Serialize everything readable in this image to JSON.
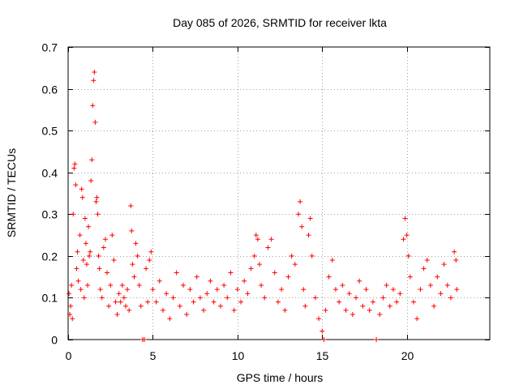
{
  "chart_data": {
    "type": "scatter",
    "title": "Day 085 of 2026, SRMTID for receiver lkta",
    "xlabel": "GPS time / hours",
    "ylabel": "SRMTID / TECUs",
    "xlim": [
      0,
      24.9
    ],
    "ylim": [
      0,
      0.7
    ],
    "x_ticks": [
      0,
      5,
      10,
      15,
      20
    ],
    "x_tick_labels": [
      "0",
      "5",
      "10",
      "15",
      "20"
    ],
    "y_ticks": [
      0,
      0.1,
      0.2,
      0.3,
      0.4,
      0.5,
      0.6,
      0.7
    ],
    "y_tick_labels": [
      "0",
      "0.1",
      "0.2",
      "0.3",
      "0.4",
      "0.5",
      "0.6",
      "0.7"
    ],
    "grid": true,
    "marker": "plus",
    "color": "#ff0000",
    "series": [
      {
        "name": "SRMTID",
        "points": [
          [
            0.05,
            0.11
          ],
          [
            0.1,
            0.06
          ],
          [
            0.15,
            0.08
          ],
          [
            0.2,
            0.13
          ],
          [
            0.25,
            0.05
          ],
          [
            0.3,
            0.3
          ],
          [
            0.35,
            0.41
          ],
          [
            0.4,
            0.42
          ],
          [
            0.45,
            0.37
          ],
          [
            0.5,
            0.17
          ],
          [
            0.55,
            0.21
          ],
          [
            0.6,
            0.14
          ],
          [
            0.7,
            0.25
          ],
          [
            0.75,
            0.12
          ],
          [
            0.8,
            0.36
          ],
          [
            0.85,
            0.34
          ],
          [
            0.9,
            0.19
          ],
          [
            0.95,
            0.1
          ],
          [
            1.0,
            0.29
          ],
          [
            1.05,
            0.23
          ],
          [
            1.1,
            0.18
          ],
          [
            1.15,
            0.13
          ],
          [
            1.2,
            0.27
          ],
          [
            1.25,
            0.2
          ],
          [
            1.3,
            0.21
          ],
          [
            1.35,
            0.38
          ],
          [
            1.4,
            0.43
          ],
          [
            1.45,
            0.56
          ],
          [
            1.5,
            0.62
          ],
          [
            1.55,
            0.64
          ],
          [
            1.6,
            0.52
          ],
          [
            1.65,
            0.33
          ],
          [
            1.7,
            0.34
          ],
          [
            1.75,
            0.3
          ],
          [
            1.8,
            0.2
          ],
          [
            1.85,
            0.17
          ],
          [
            1.9,
            0.12
          ],
          [
            2.0,
            0.1
          ],
          [
            2.1,
            0.22
          ],
          [
            2.2,
            0.24
          ],
          [
            2.3,
            0.16
          ],
          [
            2.4,
            0.08
          ],
          [
            2.5,
            0.13
          ],
          [
            2.6,
            0.25
          ],
          [
            2.7,
            0.19
          ],
          [
            2.8,
            0.09
          ],
          [
            2.9,
            0.06
          ],
          [
            3.0,
            0.11
          ],
          [
            3.1,
            0.09
          ],
          [
            3.2,
            0.13
          ],
          [
            3.3,
            0.1
          ],
          [
            3.4,
            0.08
          ],
          [
            3.5,
            0.12
          ],
          [
            3.6,
            0.07
          ],
          [
            3.7,
            0.32
          ],
          [
            3.75,
            0.26
          ],
          [
            3.8,
            0.18
          ],
          [
            3.9,
            0.15
          ],
          [
            4.0,
            0.23
          ],
          [
            4.1,
            0.2
          ],
          [
            4.2,
            0.13
          ],
          [
            4.3,
            0.08
          ],
          [
            4.4,
            0.0
          ],
          [
            4.5,
            0.0
          ],
          [
            4.6,
            0.17
          ],
          [
            4.7,
            0.09
          ],
          [
            4.8,
            0.19
          ],
          [
            4.9,
            0.21
          ],
          [
            5.0,
            0.12
          ],
          [
            5.2,
            0.09
          ],
          [
            5.4,
            0.14
          ],
          [
            5.6,
            0.07
          ],
          [
            5.8,
            0.11
          ],
          [
            6.0,
            0.05
          ],
          [
            6.2,
            0.1
          ],
          [
            6.4,
            0.16
          ],
          [
            6.6,
            0.08
          ],
          [
            6.8,
            0.13
          ],
          [
            7.0,
            0.06
          ],
          [
            7.2,
            0.12
          ],
          [
            7.4,
            0.09
          ],
          [
            7.6,
            0.15
          ],
          [
            7.8,
            0.1
          ],
          [
            8.0,
            0.07
          ],
          [
            8.2,
            0.11
          ],
          [
            8.4,
            0.14
          ],
          [
            8.6,
            0.09
          ],
          [
            8.8,
            0.12
          ],
          [
            9.0,
            0.08
          ],
          [
            9.2,
            0.13
          ],
          [
            9.4,
            0.1
          ],
          [
            9.6,
            0.16
          ],
          [
            9.8,
            0.07
          ],
          [
            10.0,
            0.12
          ],
          [
            10.2,
            0.09
          ],
          [
            10.4,
            0.14
          ],
          [
            10.6,
            0.11
          ],
          [
            10.8,
            0.17
          ],
          [
            11.0,
            0.2
          ],
          [
            11.1,
            0.25
          ],
          [
            11.2,
            0.24
          ],
          [
            11.3,
            0.18
          ],
          [
            11.4,
            0.13
          ],
          [
            11.6,
            0.1
          ],
          [
            11.8,
            0.22
          ],
          [
            12.0,
            0.24
          ],
          [
            12.2,
            0.16
          ],
          [
            12.4,
            0.09
          ],
          [
            12.6,
            0.12
          ],
          [
            12.8,
            0.07
          ],
          [
            13.0,
            0.15
          ],
          [
            13.2,
            0.2
          ],
          [
            13.4,
            0.18
          ],
          [
            13.6,
            0.3
          ],
          [
            13.7,
            0.33
          ],
          [
            13.8,
            0.27
          ],
          [
            13.9,
            0.12
          ],
          [
            14.0,
            0.08
          ],
          [
            14.2,
            0.25
          ],
          [
            14.3,
            0.29
          ],
          [
            14.4,
            0.2
          ],
          [
            14.6,
            0.1
          ],
          [
            14.8,
            0.05
          ],
          [
            15.0,
            0.02
          ],
          [
            15.1,
            0.0
          ],
          [
            15.2,
            0.07
          ],
          [
            15.4,
            0.15
          ],
          [
            15.6,
            0.19
          ],
          [
            15.8,
            0.12
          ],
          [
            16.0,
            0.09
          ],
          [
            16.2,
            0.13
          ],
          [
            16.4,
            0.07
          ],
          [
            16.6,
            0.11
          ],
          [
            16.8,
            0.06
          ],
          [
            17.0,
            0.1
          ],
          [
            17.2,
            0.14
          ],
          [
            17.4,
            0.08
          ],
          [
            17.6,
            0.12
          ],
          [
            17.8,
            0.07
          ],
          [
            18.0,
            0.09
          ],
          [
            18.2,
            0.0
          ],
          [
            18.4,
            0.06
          ],
          [
            18.6,
            0.1
          ],
          [
            18.8,
            0.13
          ],
          [
            19.0,
            0.08
          ],
          [
            19.2,
            0.12
          ],
          [
            19.4,
            0.09
          ],
          [
            19.6,
            0.11
          ],
          [
            19.8,
            0.24
          ],
          [
            19.9,
            0.29
          ],
          [
            20.0,
            0.25
          ],
          [
            20.1,
            0.2
          ],
          [
            20.2,
            0.15
          ],
          [
            20.4,
            0.09
          ],
          [
            20.6,
            0.05
          ],
          [
            20.8,
            0.12
          ],
          [
            21.0,
            0.17
          ],
          [
            21.2,
            0.19
          ],
          [
            21.4,
            0.13
          ],
          [
            21.6,
            0.08
          ],
          [
            21.8,
            0.15
          ],
          [
            22.0,
            0.11
          ],
          [
            22.2,
            0.18
          ],
          [
            22.4,
            0.13
          ],
          [
            22.6,
            0.1
          ],
          [
            22.8,
            0.21
          ],
          [
            22.9,
            0.19
          ],
          [
            22.95,
            0.12
          ]
        ]
      }
    ]
  }
}
